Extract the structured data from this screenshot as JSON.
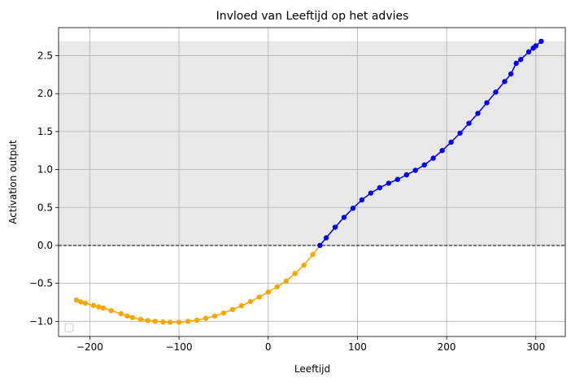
{
  "chart_data": {
    "type": "scatter",
    "title": "Invloed van Leeftijd op het advies",
    "xlabel": "Leeftijd",
    "ylabel": "Activation output",
    "xlim": [
      -235,
      333
    ],
    "ylim": [
      -1.2,
      2.87
    ],
    "xticks": [
      -200,
      -100,
      0,
      100,
      200,
      300
    ],
    "yticks": [
      -1.0,
      -0.5,
      0.0,
      0.5,
      1.0,
      1.5,
      2.0,
      2.5
    ],
    "xtick_labels": [
      "−200",
      "−100",
      "0",
      "100",
      "200",
      "300"
    ],
    "ytick_labels": [
      "−1.0",
      "−0.5",
      "0.0",
      "0.5",
      "1.0",
      "1.5",
      "2.0",
      "2.5"
    ],
    "grid": true,
    "legend": "lower-left, empty",
    "positive_region": {
      "y_from": 0.0,
      "y_to": 2.69,
      "color": "#e8e8e8"
    },
    "reference_line": {
      "y": 0.0,
      "style": "dashed",
      "color": "#000000"
    },
    "series": [
      {
        "color": "#ffa500",
        "points": [
          [
            -215,
            -0.72
          ],
          [
            -210,
            -0.745
          ],
          [
            -205,
            -0.76
          ],
          [
            -196,
            -0.79
          ],
          [
            -190,
            -0.81
          ],
          [
            -185,
            -0.825
          ],
          [
            -176,
            -0.86
          ],
          [
            -165,
            -0.9
          ],
          [
            -158,
            -0.93
          ],
          [
            -152,
            -0.95
          ],
          [
            -143,
            -0.975
          ],
          [
            -135,
            -0.99
          ],
          [
            -127,
            -1.0
          ],
          [
            -118,
            -1.01
          ],
          [
            -110,
            -1.012
          ],
          [
            -100,
            -1.012
          ],
          [
            -90,
            -1.0
          ],
          [
            -80,
            -0.985
          ],
          [
            -70,
            -0.96
          ],
          [
            -60,
            -0.93
          ],
          [
            -50,
            -0.89
          ],
          [
            -40,
            -0.845
          ],
          [
            -30,
            -0.795
          ],
          [
            -20,
            -0.74
          ],
          [
            -10,
            -0.68
          ],
          [
            0,
            -0.615
          ],
          [
            10,
            -0.545
          ],
          [
            20,
            -0.47
          ],
          [
            30,
            -0.37
          ],
          [
            40,
            -0.26
          ],
          [
            50,
            -0.12
          ],
          [
            58,
            0.0
          ]
        ]
      },
      {
        "color": "#0000ff",
        "points": [
          [
            58,
            0.0
          ],
          [
            65,
            0.1
          ],
          [
            75,
            0.24
          ],
          [
            85,
            0.37
          ],
          [
            95,
            0.49
          ],
          [
            105,
            0.6
          ],
          [
            115,
            0.69
          ],
          [
            125,
            0.76
          ],
          [
            135,
            0.82
          ],
          [
            145,
            0.87
          ],
          [
            155,
            0.93
          ],
          [
            165,
            0.99
          ],
          [
            175,
            1.06
          ],
          [
            185,
            1.15
          ],
          [
            195,
            1.25
          ],
          [
            205,
            1.36
          ],
          [
            215,
            1.48
          ],
          [
            225,
            1.61
          ],
          [
            235,
            1.74
          ],
          [
            245,
            1.88
          ],
          [
            255,
            2.02
          ],
          [
            265,
            2.16
          ],
          [
            272,
            2.26
          ],
          [
            278,
            2.4
          ],
          [
            283,
            2.45
          ],
          [
            292,
            2.55
          ],
          [
            297,
            2.6
          ],
          [
            300,
            2.63
          ],
          [
            306,
            2.69
          ]
        ]
      }
    ]
  }
}
